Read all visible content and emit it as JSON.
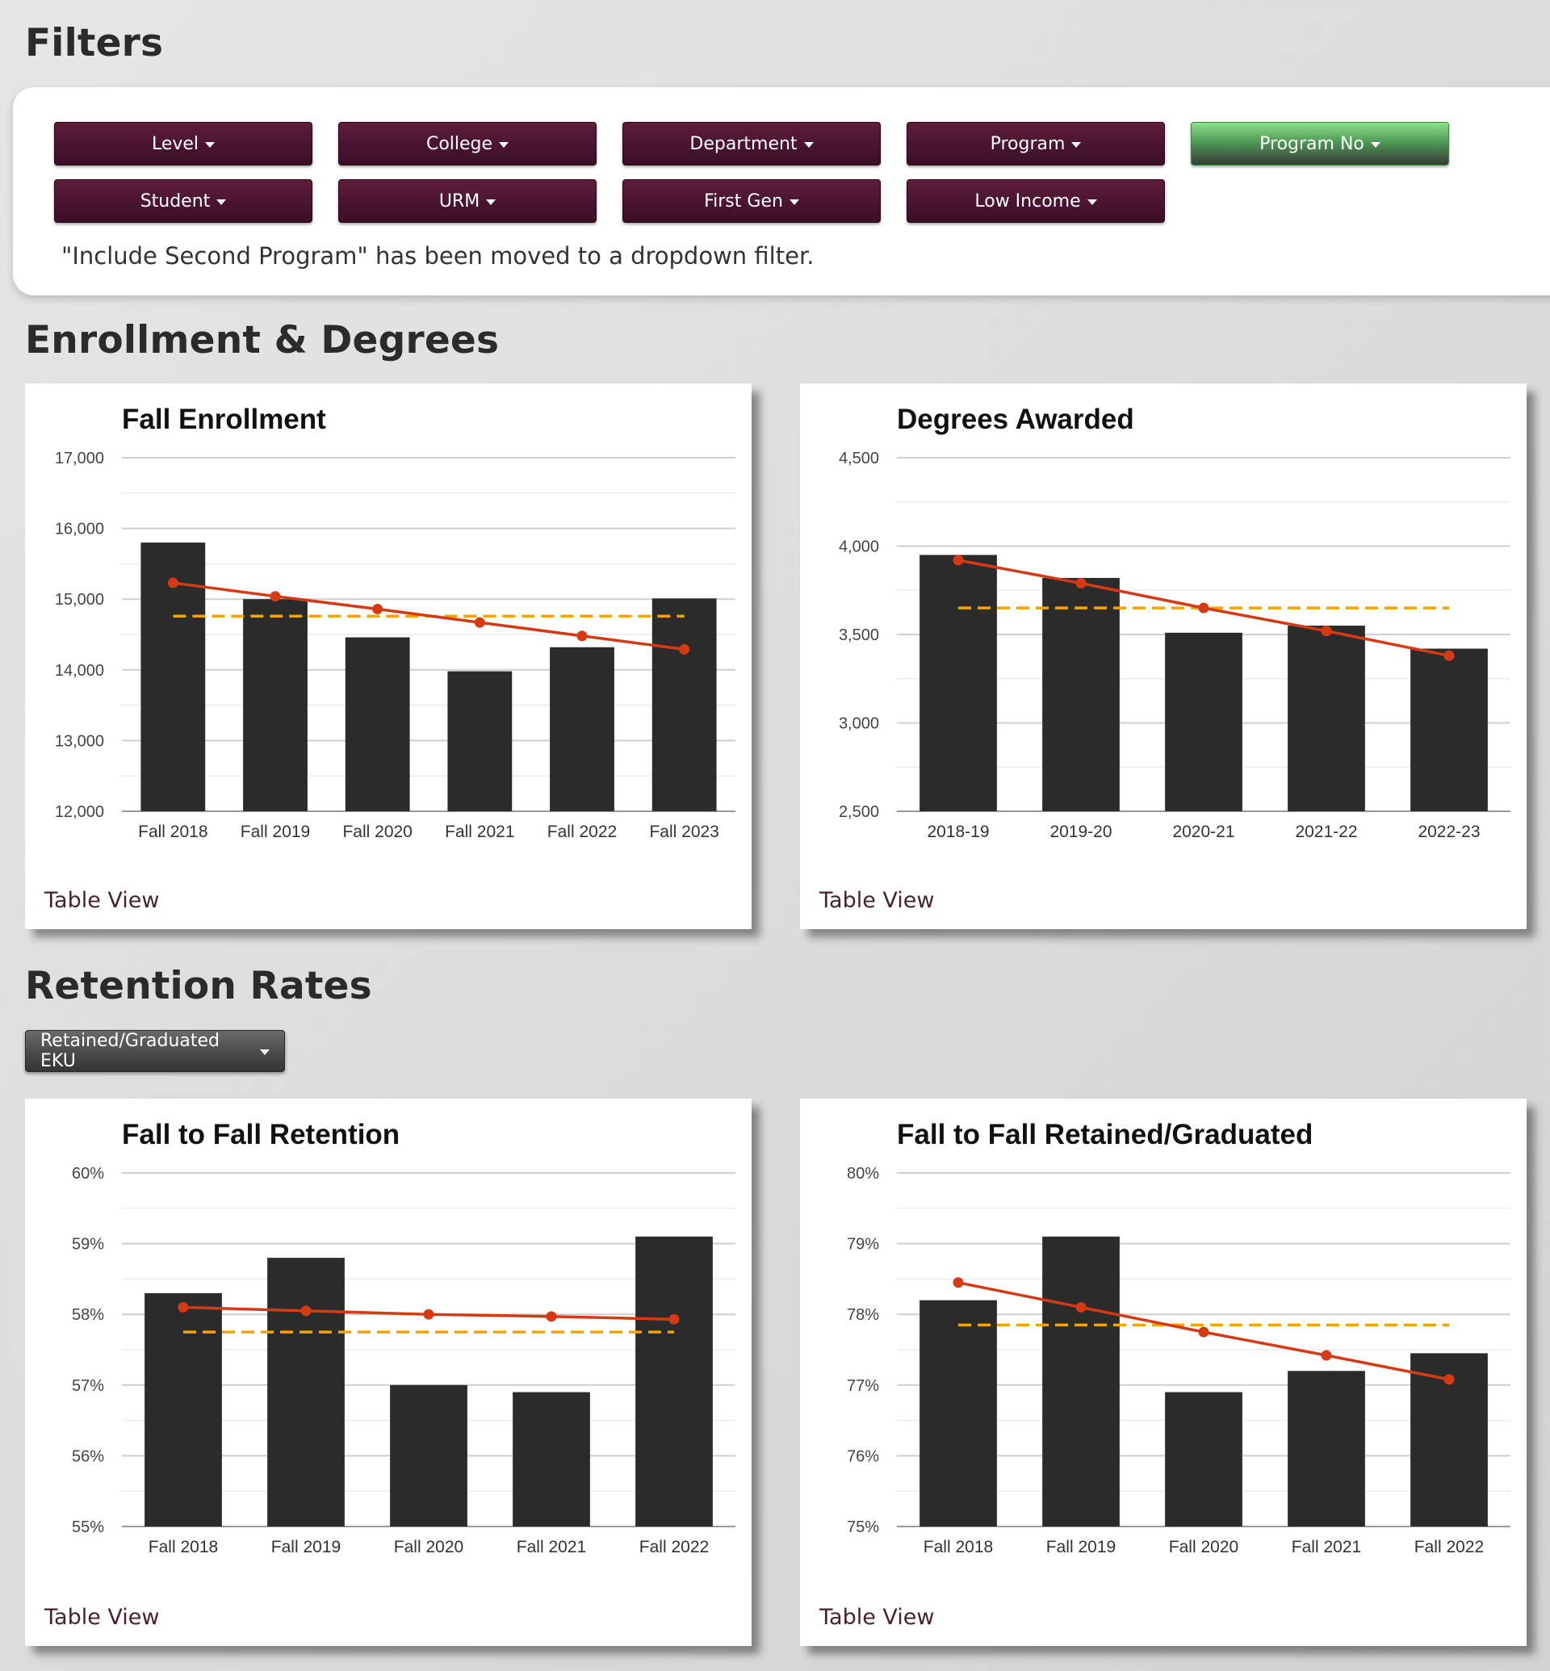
{
  "sections": {
    "filters": "Filters",
    "enrollment": "Enrollment & Degrees",
    "retention": "Retention Rates"
  },
  "filters": {
    "buttons": [
      "Level",
      "College",
      "Department",
      "Program",
      "Program No",
      "Student",
      "URM",
      "First Gen",
      "Low Income"
    ],
    "active": "Program No",
    "note": "\"Include Second Program\" has been moved to a dropdown filter."
  },
  "retention_select": {
    "label": "Retained/Graduated EKU"
  },
  "table_view_label": "Table View",
  "colors": {
    "bar": "#2b2b2b",
    "trend": "#d63a14",
    "average": "#f5a300",
    "grid": "#d9d9d9",
    "filter_button": "#4a1430",
    "filter_button_active": "#5cb85c"
  },
  "chart_data": [
    {
      "id": "fall-enrollment",
      "type": "bar",
      "title": "Fall Enrollment",
      "categories": [
        "Fall 2018",
        "Fall 2019",
        "Fall 2020",
        "Fall 2021",
        "Fall 2022",
        "Fall 2023"
      ],
      "values": [
        15800,
        15000,
        14460,
        13980,
        14320,
        15010
      ],
      "trend": [
        15230,
        15040,
        14860,
        14670,
        14480,
        14290
      ],
      "average": 14760,
      "ylim": [
        12000,
        17000
      ],
      "yticks": [
        12000,
        13000,
        14000,
        15000,
        16000,
        17000
      ],
      "ytick_labels": [
        "12,000",
        "13,000",
        "14,000",
        "15,000",
        "16,000",
        "17,000"
      ],
      "grid": true
    },
    {
      "id": "degrees-awarded",
      "type": "bar",
      "title": "Degrees Awarded",
      "categories": [
        "2018-19",
        "2019-20",
        "2020-21",
        "2021-22",
        "2022-23"
      ],
      "values": [
        3950,
        3820,
        3510,
        3550,
        3420
      ],
      "trend": [
        3920,
        3790,
        3650,
        3520,
        3380
      ],
      "average": 3650,
      "ylim": [
        2500,
        4500
      ],
      "yticks": [
        2500,
        3000,
        3500,
        4000,
        4500
      ],
      "ytick_labels": [
        "2,500",
        "3,000",
        "3,500",
        "4,000",
        "4,500"
      ],
      "grid": true
    },
    {
      "id": "fall-to-fall-retention",
      "type": "bar",
      "title": "Fall to Fall Retention",
      "categories": [
        "Fall 2018",
        "Fall 2019",
        "Fall 2020",
        "Fall 2021",
        "Fall 2022"
      ],
      "values": [
        58.3,
        58.8,
        57.0,
        56.9,
        59.1
      ],
      "trend": [
        58.1,
        58.05,
        58.0,
        57.97,
        57.93
      ],
      "average": 57.75,
      "ylim": [
        55,
        60
      ],
      "yticks": [
        55,
        56,
        57,
        58,
        59,
        60
      ],
      "ytick_labels": [
        "55%",
        "56%",
        "57%",
        "58%",
        "59%",
        "60%"
      ],
      "grid": true
    },
    {
      "id": "fall-to-fall-retained-graduated",
      "type": "bar",
      "title": "Fall to Fall Retained/Graduated",
      "categories": [
        "Fall 2018",
        "Fall 2019",
        "Fall 2020",
        "Fall 2021",
        "Fall 2022"
      ],
      "values": [
        78.2,
        79.1,
        76.9,
        77.2,
        77.45
      ],
      "trend": [
        78.45,
        78.1,
        77.75,
        77.42,
        77.08
      ],
      "average": 77.85,
      "ylim": [
        75,
        80
      ],
      "yticks": [
        75,
        76,
        77,
        78,
        79,
        80
      ],
      "ytick_labels": [
        "75%",
        "76%",
        "77%",
        "78%",
        "79%",
        "80%"
      ],
      "grid": true
    }
  ]
}
